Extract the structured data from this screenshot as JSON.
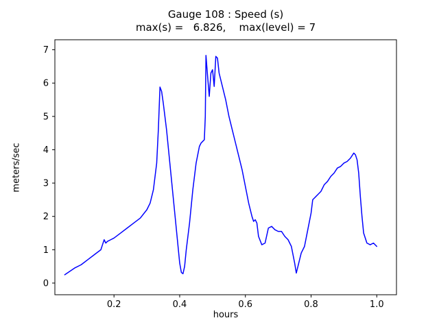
{
  "figure": {
    "title": "Gauge 108 : Speed (s)",
    "subtitle": "max(s) =   6.826,    max(level) = 7"
  },
  "chart_data": {
    "type": "line",
    "title": "Gauge 108 : Speed (s)",
    "subtitle": "max(s) =   6.826,    max(level) = 7",
    "xlabel": "hours",
    "ylabel": "meters/sec",
    "line_color": "#0000ff",
    "axis_color": "#000000",
    "xlim": [
      0.02,
      1.06
    ],
    "ylim": [
      -0.35,
      7.3
    ],
    "xtick_values": [
      0.2,
      0.4,
      0.6,
      0.8,
      1.0
    ],
    "xtick_labels": [
      "0.2",
      "0.4",
      "0.6",
      "0.8",
      "1.0"
    ],
    "ytick_values": [
      0,
      1,
      2,
      3,
      4,
      5,
      6,
      7
    ],
    "ytick_labels": [
      "0",
      "1",
      "2",
      "3",
      "4",
      "5",
      "6",
      "7"
    ],
    "max_s": 6.826,
    "max_level": 7,
    "x": [
      0.05,
      0.08,
      0.1,
      0.12,
      0.14,
      0.16,
      0.165,
      0.17,
      0.175,
      0.18,
      0.19,
      0.2,
      0.22,
      0.24,
      0.26,
      0.28,
      0.3,
      0.31,
      0.32,
      0.33,
      0.335,
      0.34,
      0.345,
      0.35,
      0.36,
      0.37,
      0.38,
      0.39,
      0.4,
      0.405,
      0.41,
      0.415,
      0.42,
      0.43,
      0.44,
      0.45,
      0.46,
      0.465,
      0.47,
      0.475,
      0.478,
      0.48,
      0.485,
      0.49,
      0.495,
      0.5,
      0.505,
      0.51,
      0.515,
      0.52,
      0.53,
      0.54,
      0.55,
      0.56,
      0.57,
      0.58,
      0.59,
      0.6,
      0.61,
      0.62,
      0.625,
      0.63,
      0.635,
      0.64,
      0.65,
      0.66,
      0.67,
      0.68,
      0.69,
      0.7,
      0.71,
      0.72,
      0.73,
      0.74,
      0.75,
      0.755,
      0.76,
      0.77,
      0.78,
      0.79,
      0.8,
      0.805,
      0.81,
      0.815,
      0.82,
      0.83,
      0.84,
      0.85,
      0.86,
      0.87,
      0.88,
      0.89,
      0.9,
      0.91,
      0.92,
      0.93,
      0.935,
      0.94,
      0.945,
      0.95,
      0.955,
      0.96,
      0.97,
      0.98,
      0.99,
      1.0
    ],
    "y": [
      0.25,
      0.45,
      0.55,
      0.7,
      0.85,
      1.0,
      1.15,
      1.3,
      1.2,
      1.25,
      1.3,
      1.35,
      1.5,
      1.65,
      1.8,
      1.95,
      2.2,
      2.4,
      2.8,
      3.6,
      4.6,
      5.88,
      5.75,
      5.4,
      4.6,
      3.6,
      2.6,
      1.6,
      0.6,
      0.32,
      0.28,
      0.5,
      1.0,
      1.8,
      2.8,
      3.6,
      4.1,
      4.2,
      4.25,
      4.3,
      5.0,
      6.83,
      6.2,
      5.6,
      6.3,
      6.4,
      5.9,
      6.8,
      6.75,
      6.3,
      5.9,
      5.5,
      5.0,
      4.6,
      4.2,
      3.8,
      3.4,
      2.9,
      2.4,
      2.0,
      1.85,
      1.9,
      1.8,
      1.4,
      1.15,
      1.2,
      1.65,
      1.7,
      1.6,
      1.55,
      1.55,
      1.4,
      1.3,
      1.1,
      0.6,
      0.3,
      0.5,
      0.9,
      1.1,
      1.6,
      2.1,
      2.5,
      2.55,
      2.6,
      2.65,
      2.75,
      2.95,
      3.05,
      3.2,
      3.3,
      3.45,
      3.5,
      3.6,
      3.65,
      3.75,
      3.9,
      3.85,
      3.7,
      3.3,
      2.6,
      2.0,
      1.5,
      1.2,
      1.15,
      1.2,
      1.1
    ]
  }
}
